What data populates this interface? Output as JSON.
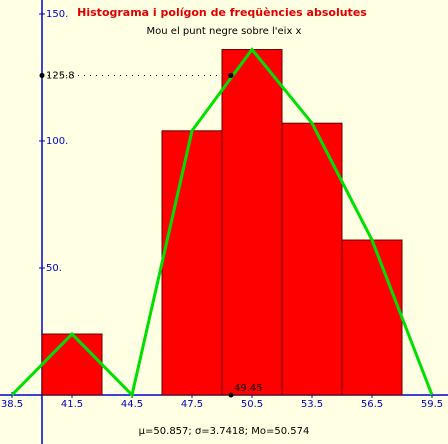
{
  "chart_data": {
    "type": "histogram",
    "title": "Histograma i polígon de freqüències absolutes",
    "subtitle": "Mou el punt negre sobre l'eix x",
    "footer": "μ=50.857; σ=3.7418; Mo=50.574",
    "bins": [
      40,
      43,
      46,
      49,
      52,
      55,
      58
    ],
    "values": [
      24,
      0,
      104,
      136,
      107,
      61
    ],
    "color": "#ff0000",
    "polygon": {
      "x": [
        38.5,
        41.5,
        44.5,
        47.5,
        50.5,
        53.5,
        56.5,
        59.5
      ],
      "values": [
        0,
        24,
        0,
        104,
        136,
        107,
        61,
        0
      ],
      "color": "#00e000"
    },
    "point": {
      "x": 49.45,
      "y": 125.8
    },
    "xlim": [
      37.9,
      60.3
    ],
    "ylim": [
      -19.3,
      155.5
    ],
    "xticks": [
      38.5,
      41.5,
      44.5,
      47.5,
      50.5,
      53.5,
      56.5,
      59.5
    ],
    "yticks": [
      {
        "value": 50,
        "label": "50."
      },
      {
        "value": 100,
        "label": "100."
      },
      {
        "value": 150,
        "label": "150."
      }
    ]
  }
}
